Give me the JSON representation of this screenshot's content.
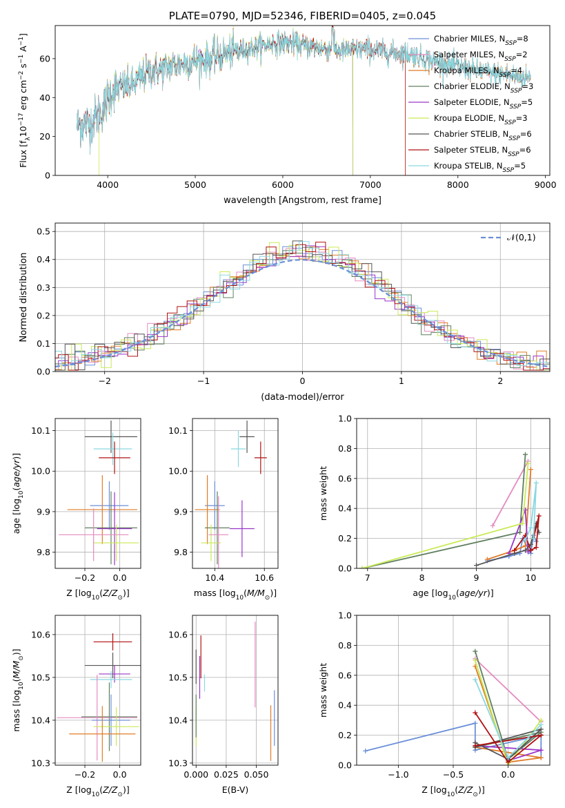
{
  "colors": {
    "chabrier_miles": "#6a8fd8",
    "salpeter_miles": "#e58ac0",
    "kroupa_miles": "#e07b25",
    "chabrier_elodie": "#5f7f5f",
    "salpeter_elodie": "#9a35c8",
    "kroupa_elodie": "#c9ea55",
    "chabrier_stelib": "#555555",
    "salpeter_stelib": "#b01010",
    "kroupa_stelib": "#8ad8e0"
  },
  "chart_data": [
    {
      "id": "spectrum",
      "type": "line",
      "title": "PLATE=0790, MJD=52346, FIBERID=0405, z=0.045",
      "xlabel": "wavelength [Angstrom, rest frame]",
      "ylabel": "Flux [f_λ10^-17 erg cm^-2 s^-1 A^-1]",
      "xlim": [
        3400,
        9050
      ],
      "ylim": [
        0,
        77
      ],
      "xticks": [
        4000,
        5000,
        6000,
        7000,
        8000,
        9000
      ],
      "yticks": [
        0,
        20,
        40,
        60
      ],
      "legend_position": "top-right",
      "series": [
        {
          "name": "Chabrier MILES, N_SSP=8",
          "color_key": "chabrier_miles",
          "x_range": [
            3650,
            8830
          ]
        },
        {
          "name": "Salpeter MILES, N_SSP=2",
          "color_key": "salpeter_miles",
          "x_range": [
            3650,
            8830
          ]
        },
        {
          "name": "Kroupa MILES, N_SSP=4",
          "color_key": "kroupa_miles",
          "x_range": [
            3650,
            8830
          ]
        },
        {
          "name": "Chabrier ELODIE, N_SSP=3",
          "color_key": "chabrier_elodie",
          "x_range": [
            3650,
            6800
          ]
        },
        {
          "name": "Salpeter ELODIE, N_SSP=5",
          "color_key": "salpeter_elodie",
          "x_range": [
            3650,
            6800
          ]
        },
        {
          "name": "Kroupa ELODIE, N_SSP=3",
          "color_key": "kroupa_elodie",
          "x_range": [
            3900,
            6800
          ]
        },
        {
          "name": "Chabrier STELIB, N_SSP=6",
          "color_key": "chabrier_stelib",
          "x_range": [
            3650,
            8830
          ]
        },
        {
          "name": "Salpeter STELIB, N_SSP=6",
          "color_key": "salpeter_stelib",
          "x_range": [
            3650,
            7400
          ]
        },
        {
          "name": "Kroupa STELIB, N_SSP=5",
          "color_key": "kroupa_stelib",
          "x_range": [
            3650,
            8830
          ]
        }
      ],
      "continuum": [
        [
          3650,
          26
        ],
        [
          3800,
          27
        ],
        [
          3950,
          34
        ],
        [
          4050,
          44
        ],
        [
          4150,
          45
        ],
        [
          4300,
          47
        ],
        [
          4400,
          51
        ],
        [
          4500,
          54
        ],
        [
          4600,
          54
        ],
        [
          4700,
          56
        ],
        [
          4800,
          57
        ],
        [
          5000,
          59
        ],
        [
          5150,
          60
        ],
        [
          5300,
          62
        ],
        [
          5500,
          64
        ],
        [
          5700,
          66
        ],
        [
          5900,
          68
        ],
        [
          6100,
          68
        ],
        [
          6300,
          66
        ],
        [
          6500,
          65
        ],
        [
          6700,
          64
        ],
        [
          6900,
          65
        ],
        [
          7100,
          64
        ],
        [
          7300,
          63
        ],
        [
          7500,
          62
        ],
        [
          7700,
          59
        ],
        [
          7900,
          57
        ],
        [
          8100,
          55
        ],
        [
          8300,
          53
        ],
        [
          8500,
          52
        ],
        [
          8830,
          50
        ]
      ],
      "grid": false
    },
    {
      "id": "residuals",
      "type": "step",
      "xlabel": "(data-model)/error",
      "ylabel": "Normed distribution",
      "xlim": [
        -2.5,
        2.5
      ],
      "ylim": [
        0,
        0.53
      ],
      "xticks": [
        -2,
        -1,
        0,
        1,
        2
      ],
      "yticks": [
        0.0,
        0.1,
        0.2,
        0.3,
        0.4,
        0.5
      ],
      "grid": true,
      "legend_position": "top-right",
      "reference": {
        "name": "𝒩(0,1)",
        "color_key": "chabrier_miles",
        "style": "dashed"
      }
    },
    {
      "id": "age_vs_Z",
      "type": "errorbar",
      "xlabel": "Z [log10(Z/Z⊙)]",
      "ylabel": "age [log10(age/yr)]",
      "xlim": [
        -0.37,
        0.12
      ],
      "ylim": [
        9.76,
        10.13
      ],
      "xticks": [
        -0.2,
        0.0
      ],
      "yticks": [
        9.8,
        9.9,
        10.0,
        10.1
      ],
      "grid": true,
      "points": [
        {
          "color_key": "chabrier_stelib",
          "x": -0.05,
          "xerr": 0.15,
          "y": 10.085,
          "yerr": 0.04
        },
        {
          "color_key": "kroupa_stelib",
          "x": -0.04,
          "xerr": 0.11,
          "y": 10.055,
          "yerr": 0.04
        },
        {
          "color_key": "salpeter_stelib",
          "x": -0.03,
          "xerr": 0.09,
          "y": 10.033,
          "yerr": 0.04
        },
        {
          "color_key": "chabrier_miles",
          "x": -0.06,
          "xerr": 0.11,
          "y": 9.915,
          "yerr": 0.06
        },
        {
          "color_key": "kroupa_miles",
          "x": -0.1,
          "xerr": 0.2,
          "y": 9.905,
          "yerr": 0.085
        },
        {
          "color_key": "chabrier_elodie",
          "x": -0.05,
          "xerr": 0.15,
          "y": 9.86,
          "yerr": 0.09
        },
        {
          "color_key": "salpeter_elodie",
          "x": -0.03,
          "xerr": 0.1,
          "y": 9.858,
          "yerr": 0.09
        },
        {
          "color_key": "kroupa_elodie",
          "x": -0.02,
          "xerr": 0.13,
          "y": 9.823,
          "yerr": 0.045
        },
        {
          "color_key": "salpeter_miles",
          "x": -0.15,
          "xerr": 0.2,
          "y": 9.843,
          "yerr": 0.065
        }
      ]
    },
    {
      "id": "age_vs_mass",
      "type": "errorbar",
      "xlabel": "mass [log10(M/M⊙)]",
      "ylabel": "",
      "xlim": [
        10.31,
        10.655
      ],
      "ylim": [
        9.76,
        10.13
      ],
      "xticks": [
        10.4,
        10.6
      ],
      "yticks": [
        9.8,
        9.9,
        10.0,
        10.1
      ],
      "grid": true,
      "points": [
        {
          "color_key": "chabrier_stelib",
          "x": 10.53,
          "xerr": 0.03,
          "y": 10.085,
          "yerr": 0.04
        },
        {
          "color_key": "kroupa_stelib",
          "x": 10.495,
          "xerr": 0.03,
          "y": 10.055,
          "yerr": 0.045
        },
        {
          "color_key": "salpeter_stelib",
          "x": 10.585,
          "xerr": 0.025,
          "y": 10.033,
          "yerr": 0.04
        },
        {
          "color_key": "chabrier_miles",
          "x": 10.4,
          "xerr": 0.04,
          "y": 9.915,
          "yerr": 0.06
        },
        {
          "color_key": "kroupa_miles",
          "x": 10.37,
          "xerr": 0.05,
          "y": 9.905,
          "yerr": 0.085
        },
        {
          "color_key": "chabrier_elodie",
          "x": 10.41,
          "xerr": 0.05,
          "y": 9.86,
          "yerr": 0.09
        },
        {
          "color_key": "salpeter_elodie",
          "x": 10.51,
          "xerr": 0.05,
          "y": 9.858,
          "yerr": 0.07
        },
        {
          "color_key": "kroupa_elodie",
          "x": 10.385,
          "xerr": 0.04,
          "y": 9.823,
          "yerr": 0.045
        },
        {
          "color_key": "salpeter_miles",
          "x": 10.415,
          "xerr": 0.04,
          "y": 9.843,
          "yerr": 0.095
        }
      ]
    },
    {
      "id": "weight_vs_age",
      "type": "line",
      "xlabel": "age [log10(age/yr)]",
      "ylabel": "mass weight",
      "xlim": [
        6.8,
        10.35
      ],
      "ylim": [
        0,
        1.0
      ],
      "xticks": [
        7,
        8,
        9,
        10
      ],
      "yticks": [
        0.0,
        0.2,
        0.4,
        0.6,
        0.8,
        1.0
      ],
      "grid": true,
      "series": [
        {
          "color_key": "chabrier_miles",
          "points": [
            [
              9.2,
              0.05
            ],
            [
              9.6,
              0.08
            ],
            [
              9.8,
              0.1
            ],
            [
              9.85,
              0.2
            ],
            [
              10.0,
              0.1
            ],
            [
              10.05,
              0.22
            ],
            [
              10.1,
              0.18
            ]
          ]
        },
        {
          "color_key": "salpeter_miles",
          "points": [
            [
              9.3,
              0.285
            ],
            [
              9.95,
              0.715
            ]
          ]
        },
        {
          "color_key": "kroupa_miles",
          "points": [
            [
              9.2,
              0.06
            ],
            [
              9.7,
              0.12
            ],
            [
              9.9,
              0.15
            ],
            [
              10.0,
              0.66
            ]
          ]
        },
        {
          "color_key": "chabrier_elodie",
          "points": [
            [
              6.9,
              0.0
            ],
            [
              9.8,
              0.24
            ],
            [
              9.9,
              0.76
            ]
          ]
        },
        {
          "color_key": "salpeter_elodie",
          "points": [
            [
              9.6,
              0.1
            ],
            [
              9.9,
              0.39
            ],
            [
              9.95,
              0.11
            ]
          ]
        },
        {
          "color_key": "kroupa_elodie",
          "points": [
            [
              6.9,
              0.0
            ],
            [
              9.85,
              0.3
            ],
            [
              9.95,
              0.7
            ]
          ]
        },
        {
          "color_key": "chabrier_stelib",
          "points": [
            [
              9.0,
              0.02
            ],
            [
              9.7,
              0.1
            ],
            [
              9.9,
              0.12
            ],
            [
              10.0,
              0.16
            ],
            [
              10.1,
              0.3
            ],
            [
              10.15,
              0.24
            ]
          ]
        },
        {
          "color_key": "salpeter_stelib",
          "points": [
            [
              9.7,
              0.12
            ],
            [
              9.9,
              0.22
            ],
            [
              10.0,
              0.12
            ],
            [
              10.1,
              0.14
            ],
            [
              10.15,
              0.35
            ],
            [
              10.05,
              0.2
            ]
          ]
        },
        {
          "color_key": "kroupa_stelib",
          "points": [
            [
              9.9,
              0.19
            ],
            [
              10.0,
              0.27
            ],
            [
              10.1,
              0.57
            ],
            [
              10.05,
              0.2
            ]
          ]
        }
      ]
    },
    {
      "id": "mass_vs_Z",
      "type": "errorbar",
      "xlabel": "Z [log10(Z/Z⊙)]",
      "ylabel": "mass [log10(M/M⊙)]",
      "xlim": [
        -0.37,
        0.12
      ],
      "ylim": [
        10.295,
        10.645
      ],
      "xticks": [
        -0.2,
        0.0
      ],
      "yticks": [
        10.3,
        10.4,
        10.5,
        10.6
      ],
      "grid": true,
      "points": [
        {
          "color_key": "salpeter_stelib",
          "x": -0.04,
          "xerr": 0.11,
          "y": 10.583,
          "yerr": 0.02
        },
        {
          "color_key": "chabrier_stelib",
          "x": -0.04,
          "xerr": 0.16,
          "y": 10.528,
          "yerr": 0.03
        },
        {
          "color_key": "salpeter_elodie",
          "x": -0.03,
          "xerr": 0.09,
          "y": 10.508,
          "yerr": 0.02
        },
        {
          "color_key": "kroupa_stelib",
          "x": -0.05,
          "xerr": 0.12,
          "y": 10.495,
          "yerr": 0.02
        },
        {
          "color_key": "chabrier_elodie",
          "x": -0.06,
          "xerr": 0.16,
          "y": 10.408,
          "yerr": 0.08
        },
        {
          "color_key": "salpeter_miles",
          "x": -0.13,
          "xerr": 0.23,
          "y": 10.406,
          "yerr": 0.1
        },
        {
          "color_key": "chabrier_miles",
          "x": -0.05,
          "xerr": 0.11,
          "y": 10.4,
          "yerr": 0.06
        },
        {
          "color_key": "kroupa_elodie",
          "x": -0.02,
          "xerr": 0.13,
          "y": 10.385,
          "yerr": 0.045
        },
        {
          "color_key": "kroupa_miles",
          "x": -0.1,
          "xerr": 0.19,
          "y": 10.368,
          "yerr": 0.065
        }
      ]
    },
    {
      "id": "mass_vs_ebv",
      "type": "errorbar",
      "xlabel": "E(B-V)",
      "ylabel": "",
      "xlim": [
        -0.003,
        0.068
      ],
      "ylim": [
        10.295,
        10.645
      ],
      "xticks": [
        0.0,
        0.025,
        0.05
      ],
      "yticks": [
        10.3,
        10.4,
        10.5,
        10.6
      ],
      "grid": true,
      "points": [
        {
          "color_key": "salpeter_stelib",
          "x": 0.004,
          "xerr": 0,
          "y": 10.548,
          "yerr": 0.05
        },
        {
          "color_key": "salpeter_elodie",
          "x": 0.003,
          "xerr": 0,
          "y": 10.5,
          "yerr": 0.05
        },
        {
          "color_key": "kroupa_stelib",
          "x": 0.007,
          "xerr": 0,
          "y": 10.487,
          "yerr": 0.02
        },
        {
          "color_key": "chabrier_stelib",
          "x": 0.0,
          "xerr": 0,
          "y": 10.525,
          "yerr": 0.04
        },
        {
          "color_key": "kroupa_elodie",
          "x": 0.0,
          "xerr": 0,
          "y": 10.385,
          "yerr": 0.045
        },
        {
          "color_key": "chabrier_elodie",
          "x": 0.0,
          "xerr": 0,
          "y": 10.41,
          "yerr": 0.05
        },
        {
          "color_key": "salpeter_miles",
          "x": 0.049,
          "xerr": 0,
          "y": 10.53,
          "yerr": 0.1
        },
        {
          "color_key": "kroupa_miles",
          "x": 0.062,
          "xerr": 0,
          "y": 10.37,
          "yerr": 0.065
        },
        {
          "color_key": "chabrier_miles",
          "x": 0.065,
          "xerr": 0,
          "y": 10.405,
          "yerr": 0.065
        }
      ]
    },
    {
      "id": "weight_vs_Z",
      "type": "line",
      "xlabel": "Z [log10(Z/Z⊙)]",
      "ylabel": "mass weight",
      "xlim": [
        -1.38,
        0.38
      ],
      "ylim": [
        0,
        1.0
      ],
      "xticks": [
        -1.0,
        -0.5,
        0.0
      ],
      "yticks": [
        0.0,
        0.2,
        0.4,
        0.6,
        0.8,
        1.0
      ],
      "grid": true,
      "series": [
        {
          "color_key": "chabrier_miles",
          "points": [
            [
              -1.3,
              0.095
            ],
            [
              -0.3,
              0.28
            ],
            [
              -0.3,
              0.1
            ],
            [
              0.3,
              0.2
            ],
            [
              0.3,
              0.05
            ]
          ]
        },
        {
          "color_key": "salpeter_miles",
          "points": [
            [
              -0.3,
              0.71
            ],
            [
              0.3,
              0.29
            ]
          ]
        },
        {
          "color_key": "kroupa_miles",
          "points": [
            [
              -0.3,
              0.66
            ],
            [
              0.0,
              0.02
            ],
            [
              0.3,
              0.05
            ],
            [
              -0.3,
              0.12
            ]
          ]
        },
        {
          "color_key": "chabrier_elodie",
          "points": [
            [
              -0.3,
              0.76
            ],
            [
              0.0,
              0.04
            ],
            [
              0.3,
              0.22
            ],
            [
              -0.3,
              0.12
            ]
          ]
        },
        {
          "color_key": "salpeter_elodie",
          "points": [
            [
              -0.3,
              0.13
            ],
            [
              0.3,
              0.1
            ],
            [
              0.0,
              0.03
            ]
          ]
        },
        {
          "color_key": "kroupa_elodie",
          "points": [
            [
              -0.3,
              0.7
            ],
            [
              0.0,
              0.0
            ],
            [
              0.3,
              0.3
            ]
          ]
        },
        {
          "color_key": "chabrier_stelib",
          "points": [
            [
              -0.3,
              0.15
            ],
            [
              0.0,
              0.04
            ],
            [
              0.3,
              0.24
            ],
            [
              -0.3,
              0.12
            ]
          ]
        },
        {
          "color_key": "salpeter_stelib",
          "points": [
            [
              -0.3,
              0.35
            ],
            [
              0.0,
              0.02
            ],
            [
              0.3,
              0.2
            ],
            [
              -0.3,
              0.13
            ]
          ]
        },
        {
          "color_key": "kroupa_stelib",
          "points": [
            [
              -0.3,
              0.57
            ],
            [
              0.0,
              0.05
            ],
            [
              0.3,
              0.27
            ]
          ]
        }
      ]
    }
  ]
}
